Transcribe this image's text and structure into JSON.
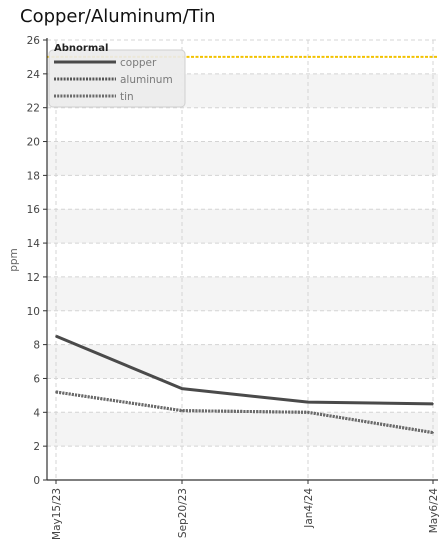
{
  "chart_data": {
    "type": "line",
    "title": "Copper/Aluminum/Tin",
    "xlabel": "",
    "ylabel": "ppm",
    "categories": [
      "May15/23",
      "Sep20/23",
      "Jan4/24",
      "May6/24"
    ],
    "x_dates": [
      "2023-05-15",
      "2023-09-20",
      "2024-01-04",
      "2024-05-06"
    ],
    "ylim": [
      0,
      26
    ],
    "yticks": [
      0,
      2,
      4,
      6,
      8,
      10,
      12,
      14,
      16,
      18,
      20,
      22,
      24,
      26
    ],
    "grid": true,
    "legend_position": "top-left",
    "legend_title": "Abnormal",
    "series": [
      {
        "name": "copper",
        "values": [
          8.5,
          5.4,
          4.6,
          4.5
        ],
        "color": "#4a4a4a",
        "style": "solid"
      },
      {
        "name": "aluminum",
        "values": [
          5.2,
          4.1,
          4.0,
          2.8
        ],
        "color": "#555555",
        "style": "dotted"
      },
      {
        "name": "tin",
        "values": [
          5.2,
          4.1,
          4.0,
          2.8
        ],
        "color": "#6a6a6a",
        "style": "dotted"
      }
    ],
    "threshold": {
      "label": "Abnormal",
      "value": 25,
      "color": "#f2c200"
    }
  }
}
